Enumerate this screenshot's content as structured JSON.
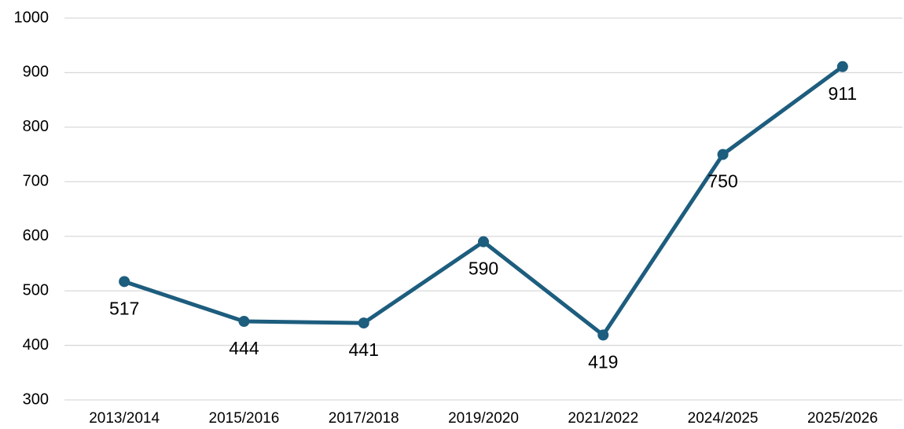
{
  "chart_data": {
    "type": "line",
    "categories": [
      "2013/2014",
      "2015/2016",
      "2017/2018",
      "2019/2020",
      "2021/2022",
      "2024/2025",
      "2025/2026"
    ],
    "values": [
      517,
      444,
      441,
      590,
      419,
      750,
      911
    ],
    "color": "#1d5d7e",
    "ylim": [
      300,
      1000
    ],
    "yticks": [
      300,
      400,
      500,
      600,
      700,
      800,
      900,
      1000
    ],
    "grid": true
  }
}
